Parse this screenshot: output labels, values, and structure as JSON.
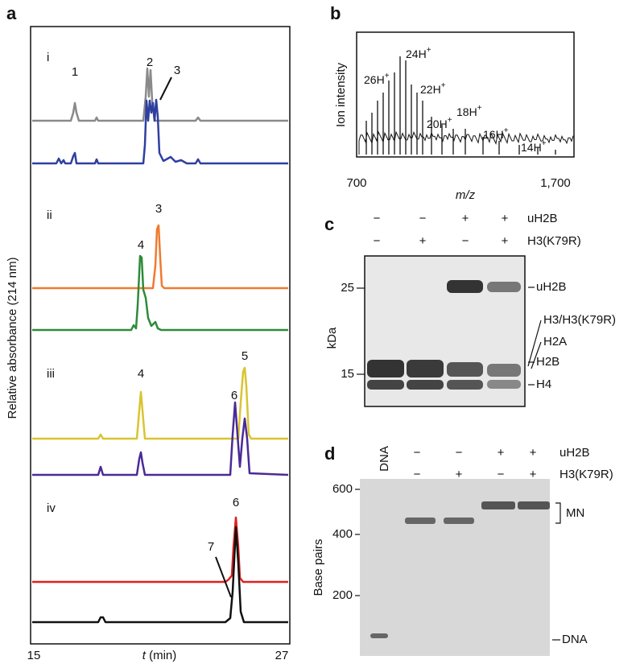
{
  "panels": {
    "a": {
      "label": "a",
      "y_label": "Relative absorbance (214 nm)",
      "x_label_var": "t",
      "x_label_unit": "(min)",
      "x_ticks": [
        "15",
        "27"
      ],
      "sections": [
        {
          "label": "i",
          "peaks": [
            "1",
            "2",
            "3"
          ]
        },
        {
          "label": "ii",
          "peaks": [
            "3",
            "4"
          ]
        },
        {
          "label": "iii",
          "peaks": [
            "4",
            "5",
            "6"
          ]
        },
        {
          "label": "iv",
          "peaks": [
            "6",
            "7"
          ]
        }
      ]
    },
    "b": {
      "label": "b",
      "y_label": "Ion intensity",
      "x_label": "m/z",
      "x_ticks": [
        "700",
        "1,700"
      ],
      "ions": [
        {
          "n": "26H",
          "charge": "+"
        },
        {
          "n": "24H",
          "charge": "+"
        },
        {
          "n": "22H",
          "charge": "+"
        },
        {
          "n": "20H",
          "charge": "+"
        },
        {
          "n": "18H",
          "charge": "+"
        },
        {
          "n": "16H",
          "charge": "+"
        },
        {
          "n": "14H",
          "charge": "+"
        }
      ]
    },
    "c": {
      "label": "c",
      "rows": [
        {
          "name": "uH2B",
          "signs": [
            "−",
            "−",
            "+",
            "+"
          ]
        },
        {
          "name": "H3(K79R)",
          "signs": [
            "−",
            "+",
            "−",
            "+"
          ]
        }
      ],
      "y_label": "kDa",
      "y_ticks": [
        "25",
        "15"
      ],
      "bands": [
        "uH2B",
        "H3/H3(K79R)",
        "H2A",
        "H2B",
        "H4"
      ]
    },
    "d": {
      "label": "d",
      "lane_label": "DNA",
      "rows": [
        {
          "name": "uH2B",
          "signs": [
            "−",
            "−",
            "+",
            "+"
          ]
        },
        {
          "name": "H3(K79R)",
          "signs": [
            "−",
            "+",
            "−",
            "+"
          ]
        }
      ],
      "y_label": "Base pairs",
      "y_ticks": [
        "600",
        "400",
        "200"
      ],
      "bands": [
        "MN",
        "DNA"
      ]
    }
  }
}
